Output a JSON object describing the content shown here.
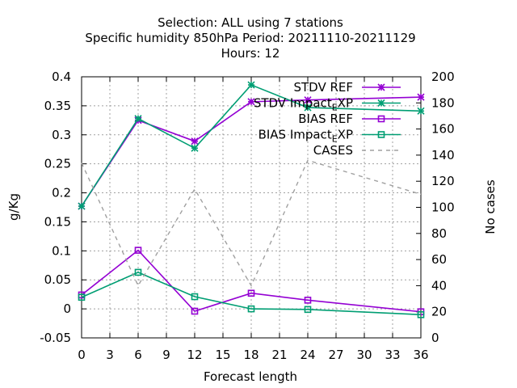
{
  "chart_data": {
    "type": "line",
    "title_lines": [
      "Selection: ALL using     7 stations",
      "Specific humidity 850hPa   Period: 20211110-20211129",
      "Hours:  12"
    ],
    "xlabel": "Forecast length",
    "ylabel": "g/Kg",
    "y2label": "No cases",
    "xlim": [
      0,
      36
    ],
    "ylim": [
      -0.05,
      0.4
    ],
    "y2lim": [
      0,
      200
    ],
    "xticks": [
      0,
      3,
      6,
      9,
      12,
      15,
      18,
      21,
      24,
      27,
      30,
      33,
      36
    ],
    "yticks": [
      "-0.05",
      "0",
      "0.05",
      "0.1",
      "0.15",
      "0.2",
      "0.25",
      "0.3",
      "0.35",
      "0.4"
    ],
    "y2ticks": [
      "0",
      "20",
      "40",
      "60",
      "80",
      "100",
      "120",
      "140",
      "160",
      "180",
      "200"
    ],
    "grid": true,
    "legend_position": "top-right",
    "series": [
      {
        "name": "STDV REF",
        "axis": "y",
        "color": "#9400d3",
        "marker": "star",
        "x": [
          0,
          6,
          12,
          18,
          24,
          36
        ],
        "values": [
          0.177,
          0.325,
          0.289,
          0.357,
          0.36,
          0.365
        ]
      },
      {
        "name": "STDV Impact",
        "name_sub": "E",
        "name_tail": "XP",
        "axis": "y",
        "color": "#009e73",
        "marker": "star",
        "x": [
          0,
          6,
          12,
          18,
          24,
          36
        ],
        "values": [
          0.177,
          0.328,
          0.277,
          0.386,
          0.347,
          0.341
        ]
      },
      {
        "name": "BIAS REF",
        "axis": "y",
        "color": "#9400d3",
        "marker": "square",
        "x": [
          0,
          6,
          12,
          18,
          24,
          36
        ],
        "values": [
          0.024,
          0.101,
          -0.004,
          0.027,
          0.015,
          -0.005
        ]
      },
      {
        "name": "BIAS Impact",
        "name_sub": "E",
        "name_tail": "XP",
        "axis": "y",
        "color": "#009e73",
        "marker": "square",
        "x": [
          0,
          6,
          12,
          18,
          24,
          36
        ],
        "values": [
          0.02,
          0.063,
          0.021,
          0.0,
          -0.001,
          -0.01
        ]
      },
      {
        "name": "CASES",
        "axis": "y2",
        "color": "#a0a0a0",
        "marker": "none",
        "dashed": true,
        "x": [
          0,
          6,
          12,
          18,
          24,
          36
        ],
        "values": [
          134,
          40,
          114,
          40,
          136,
          110
        ]
      }
    ]
  }
}
